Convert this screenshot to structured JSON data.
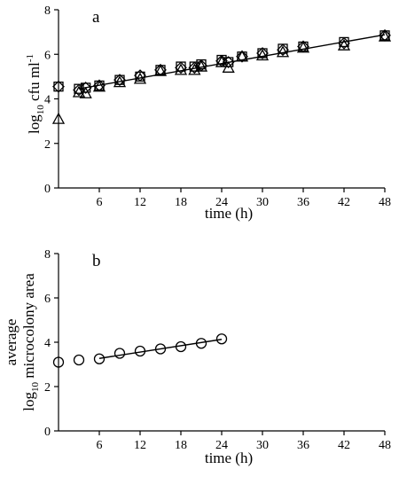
{
  "chart_data": [
    {
      "panel_label": "a",
      "type": "scatter",
      "xlabel": "time (h)",
      "ylabel_base": "log",
      "ylabel_sub": "10",
      "ylabel_rest": " cfu ml",
      "ylabel_sup": "-1",
      "xlim": [
        0,
        48
      ],
      "ylim": [
        0,
        8
      ],
      "x_ticks": [
        6,
        12,
        18,
        24,
        30,
        36,
        42,
        48
      ],
      "y_ticks": [
        0,
        2,
        4,
        6,
        8
      ],
      "series": [
        {
          "marker": "square",
          "x": [
            0,
            3,
            4,
            6,
            9,
            12,
            15,
            18,
            20,
            21,
            24,
            25,
            27,
            30,
            33,
            36,
            42,
            48
          ],
          "y": [
            4.55,
            4.45,
            4.5,
            4.6,
            4.85,
            5.0,
            5.3,
            5.45,
            5.45,
            5.55,
            5.75,
            5.65,
            5.9,
            6.05,
            6.25,
            6.35,
            6.55,
            6.85
          ]
        },
        {
          "marker": "diamond",
          "x": [
            0,
            3,
            4,
            6,
            9,
            12,
            15,
            18,
            20,
            21,
            24,
            25,
            27,
            30,
            33,
            36,
            42,
            48
          ],
          "y": [
            4.55,
            4.4,
            4.5,
            4.6,
            4.85,
            5.05,
            5.3,
            5.4,
            5.4,
            5.5,
            5.7,
            5.65,
            5.9,
            6.05,
            6.2,
            6.35,
            6.5,
            6.85
          ]
        },
        {
          "marker": "triangle",
          "x": [
            0,
            3,
            4,
            6,
            9,
            12,
            15,
            18,
            20,
            21,
            24,
            25,
            27,
            30,
            33,
            36,
            42,
            48
          ],
          "y": [
            3.1,
            4.3,
            4.25,
            4.55,
            4.75,
            4.9,
            5.25,
            5.3,
            5.3,
            5.45,
            5.65,
            5.4,
            5.9,
            5.95,
            6.1,
            6.3,
            6.4,
            6.8
          ]
        }
      ],
      "fit_line": {
        "x": [
          3,
          48
        ],
        "y": [
          4.45,
          6.88
        ]
      }
    },
    {
      "panel_label": "b",
      "type": "scatter",
      "xlabel": "time (h)",
      "ylabel_line1": "average",
      "ylabel_base": "log",
      "ylabel_sub": "10",
      "ylabel_rest": " microcolony area",
      "xlim": [
        0,
        48
      ],
      "ylim": [
        0,
        8
      ],
      "x_ticks": [
        6,
        12,
        18,
        24,
        30,
        36,
        42,
        48
      ],
      "y_ticks": [
        0,
        2,
        4,
        6,
        8
      ],
      "series": [
        {
          "marker": "circle",
          "x": [
            0,
            3,
            6,
            9,
            12,
            15,
            18,
            21,
            24
          ],
          "y": [
            3.1,
            3.2,
            3.25,
            3.5,
            3.6,
            3.7,
            3.8,
            3.95,
            4.15
          ]
        }
      ],
      "fit_line": {
        "x": [
          6,
          24
        ],
        "y": [
          3.27,
          4.13
        ]
      }
    }
  ]
}
